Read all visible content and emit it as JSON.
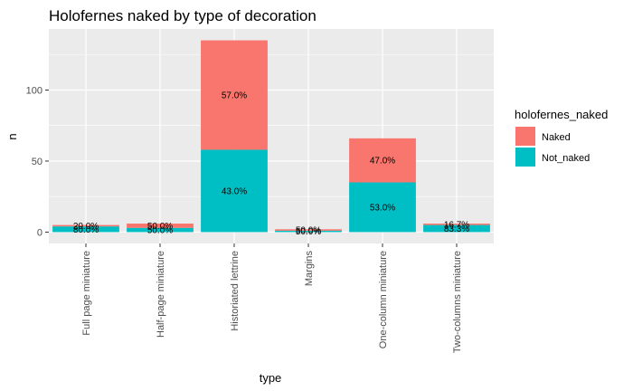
{
  "chart_data": {
    "type": "bar",
    "stacked": true,
    "title": "Holofernes naked by type of decoration",
    "xlabel": "type",
    "ylabel": "n",
    "ylim": [
      -8,
      143
    ],
    "yticks": [
      0,
      50,
      100
    ],
    "grid": true,
    "legend_position": "right",
    "legend_title": "holofernes_naked",
    "categories": [
      "Full page miniature",
      "Half-page miniature",
      "Historiated lettrine",
      "Margins",
      "One-column miniature",
      "Two-columns miniature"
    ],
    "series": [
      {
        "name": "Naked",
        "color": "#F8766D",
        "values": [
          1,
          3,
          77,
          1,
          31,
          1
        ],
        "labels": [
          "20.0%",
          "50.0%",
          "57.0%",
          "50.0%",
          "47.0%",
          "16.7%"
        ]
      },
      {
        "name": "Not_naked",
        "color": "#00BFC4",
        "values": [
          4,
          3,
          58,
          1,
          35,
          5
        ],
        "labels": [
          "80.0%",
          "50.0%",
          "43.0%",
          "50.0%",
          "53.0%",
          "83.3%"
        ]
      }
    ]
  }
}
